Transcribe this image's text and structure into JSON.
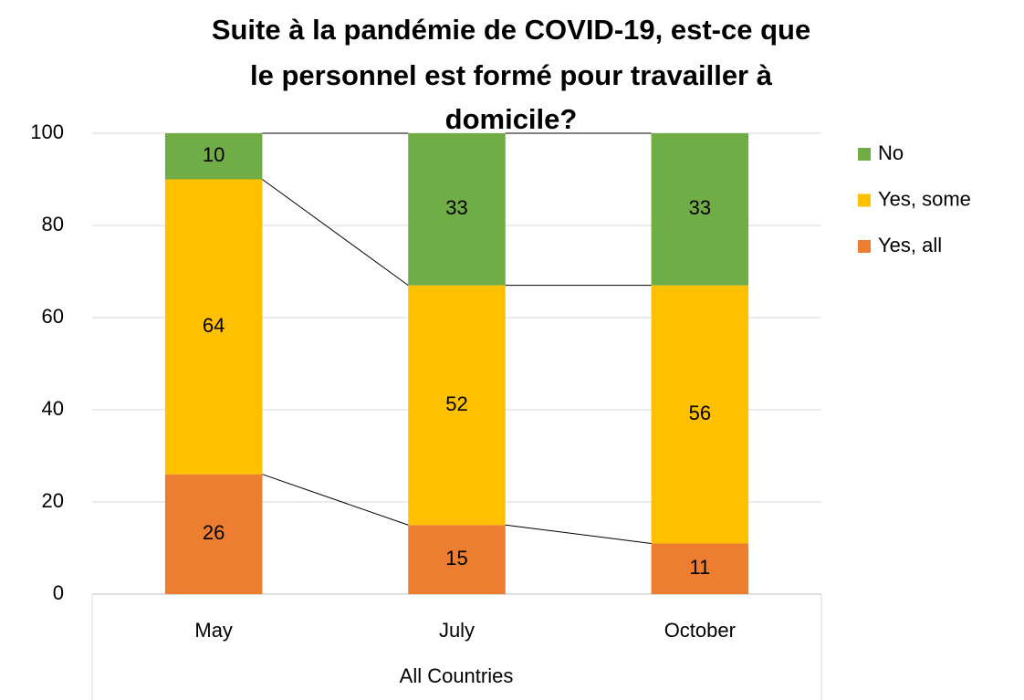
{
  "chart_data": {
    "type": "stacked_bar",
    "title": [
      "Suite à la pandémie de COVID-19, est-ce que",
      "le personnel est formé pour travailler à",
      "domicile?"
    ],
    "categories": [
      "May",
      "July",
      "October"
    ],
    "group_label": "All Countries",
    "series": [
      {
        "name": "Yes, all",
        "color": "#ed7d31",
        "values": [
          26,
          15,
          11
        ]
      },
      {
        "name": "Yes, some",
        "color": "#ffc000",
        "values": [
          64,
          52,
          56
        ]
      },
      {
        "name": "No",
        "color": "#70ad47",
        "values": [
          10,
          33,
          33
        ]
      }
    ],
    "ylim": [
      0,
      100
    ],
    "yticks": [
      0,
      20,
      40,
      60,
      80,
      100
    ],
    "grid": true,
    "legend": "right"
  }
}
